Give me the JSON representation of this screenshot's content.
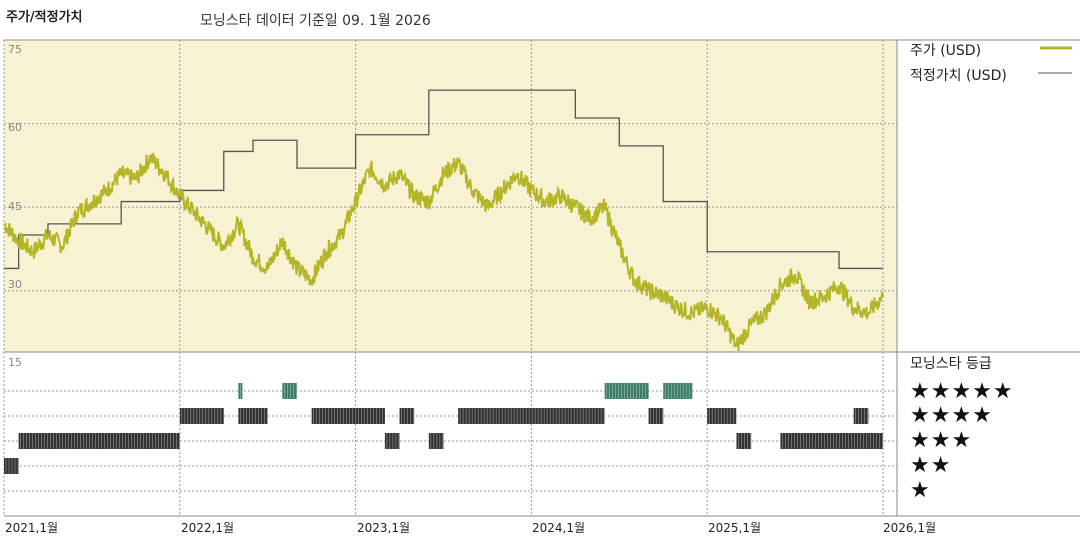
{
  "header": {
    "left_title": "주가/적정가치",
    "subtitle": "모닝스타 데이터 기준일 09. 1월 2026"
  },
  "legend": {
    "price_label": "주가 (USD)",
    "fair_value_label": "적정가치 (USD)",
    "rating_title": "모닝스타 등급",
    "rating_rows": [
      "★★★★★",
      "★★★★",
      "★★★",
      "★★",
      "★"
    ]
  },
  "colors": {
    "price": "#b5b52a",
    "fair_value": "#555555",
    "price_panel_bg": "#f7f3d2",
    "rating_5": "#3c7f66",
    "rating_other": "#333333"
  },
  "chart_data": {
    "type": "line",
    "x_ticks": [
      "2021,1월",
      "2022,1월",
      "2023,1월",
      "2024,1월",
      "2025,1월",
      "2026,1월"
    ],
    "y_ticks": [
      "75",
      "60",
      "45",
      "30"
    ],
    "ylim": [
      19,
      75
    ],
    "xlim": [
      "2021-01",
      "2026-01"
    ],
    "rating_y_tick": "15",
    "series": [
      {
        "name": "주가 (USD)",
        "points": [
          [
            "2021-01",
            42
          ],
          [
            "2021-02",
            39
          ],
          [
            "2021-03",
            37
          ],
          [
            "2021-04",
            40
          ],
          [
            "2021-05",
            38
          ],
          [
            "2021-06",
            44
          ],
          [
            "2021-07",
            46
          ],
          [
            "2021-08",
            48
          ],
          [
            "2021-09",
            51
          ],
          [
            "2021-10",
            50
          ],
          [
            "2021-11",
            54
          ],
          [
            "2021-12",
            51
          ],
          [
            "2022-01",
            47
          ],
          [
            "2022-02",
            44
          ],
          [
            "2022-03",
            41
          ],
          [
            "2022-04",
            38
          ],
          [
            "2022-05",
            42
          ],
          [
            "2022-06",
            36
          ],
          [
            "2022-07",
            34
          ],
          [
            "2022-08",
            39
          ],
          [
            "2022-09",
            34
          ],
          [
            "2022-10",
            32
          ],
          [
            "2022-11",
            37
          ],
          [
            "2022-12",
            40
          ],
          [
            "2023-01",
            46
          ],
          [
            "2023-02",
            52
          ],
          [
            "2023-03",
            49
          ],
          [
            "2023-04",
            51
          ],
          [
            "2023-05",
            47
          ],
          [
            "2023-06",
            46
          ],
          [
            "2023-07",
            51
          ],
          [
            "2023-08",
            53
          ],
          [
            "2023-09",
            48
          ],
          [
            "2023-10",
            45
          ],
          [
            "2023-11",
            48
          ],
          [
            "2023-12",
            51
          ],
          [
            "2024-01",
            48
          ],
          [
            "2024-02",
            46
          ],
          [
            "2024-03",
            47
          ],
          [
            "2024-04",
            45
          ],
          [
            "2024-05",
            43
          ],
          [
            "2024-06",
            45
          ],
          [
            "2024-07",
            38
          ],
          [
            "2024-08",
            32
          ],
          [
            "2024-09",
            30
          ],
          [
            "2024-10",
            29
          ],
          [
            "2024-11",
            27
          ],
          [
            "2024-12",
            26
          ],
          [
            "2025-01",
            27
          ],
          [
            "2025-02",
            25
          ],
          [
            "2025-03",
            20
          ],
          [
            "2025-04",
            24
          ],
          [
            "2025-05",
            26
          ],
          [
            "2025-06",
            31
          ],
          [
            "2025-07",
            33
          ],
          [
            "2025-08",
            28
          ],
          [
            "2025-09",
            29
          ],
          [
            "2025-10",
            31
          ],
          [
            "2025-11",
            27
          ],
          [
            "2025-12",
            26
          ],
          [
            "2026-01",
            29
          ]
        ]
      },
      {
        "name": "적정가치 (USD)",
        "steps": [
          [
            "2021-01",
            34
          ],
          [
            "2021-02",
            40
          ],
          [
            "2021-04",
            42
          ],
          [
            "2021-09",
            46
          ],
          [
            "2022-01",
            48
          ],
          [
            "2022-04",
            55
          ],
          [
            "2022-06",
            57
          ],
          [
            "2022-09",
            52
          ],
          [
            "2023-01",
            58
          ],
          [
            "2023-06",
            66
          ],
          [
            "2024-01",
            66
          ],
          [
            "2024-04",
            61
          ],
          [
            "2024-07",
            56
          ],
          [
            "2024-10",
            46
          ],
          [
            "2025-01",
            37
          ],
          [
            "2025-10",
            34
          ],
          [
            "2026-01",
            34
          ]
        ]
      }
    ],
    "rating_bands": {
      "levels": [
        5,
        4,
        3,
        2,
        1
      ],
      "segments": [
        {
          "stars": 2,
          "from": "2021-01",
          "to": "2021-02"
        },
        {
          "stars": 3,
          "from": "2021-02",
          "to": "2022-01"
        },
        {
          "stars": 4,
          "from": "2022-01",
          "to": "2022-04"
        },
        {
          "stars": 5,
          "from": "2022-05",
          "to": "2022-05"
        },
        {
          "stars": 4,
          "from": "2022-05",
          "to": "2022-07"
        },
        {
          "stars": 5,
          "from": "2022-08",
          "to": "2022-09"
        },
        {
          "stars": 4,
          "from": "2022-10",
          "to": "2023-03"
        },
        {
          "stars": 3,
          "from": "2023-03",
          "to": "2023-04"
        },
        {
          "stars": 4,
          "from": "2023-04",
          "to": "2023-05"
        },
        {
          "stars": 3,
          "from": "2023-06",
          "to": "2023-07"
        },
        {
          "stars": 4,
          "from": "2023-08",
          "to": "2024-06"
        },
        {
          "stars": 5,
          "from": "2024-06",
          "to": "2024-09"
        },
        {
          "stars": 4,
          "from": "2024-09",
          "to": "2024-10"
        },
        {
          "stars": 5,
          "from": "2024-10",
          "to": "2024-12"
        },
        {
          "stars": 4,
          "from": "2025-01",
          "to": "2025-03"
        },
        {
          "stars": 3,
          "from": "2025-03",
          "to": "2025-04"
        },
        {
          "stars": 3,
          "from": "2025-06",
          "to": "2025-12"
        },
        {
          "stars": 4,
          "from": "2025-11",
          "to": "2025-12"
        },
        {
          "stars": 3,
          "from": "2025-12",
          "to": "2026-01"
        }
      ]
    }
  }
}
